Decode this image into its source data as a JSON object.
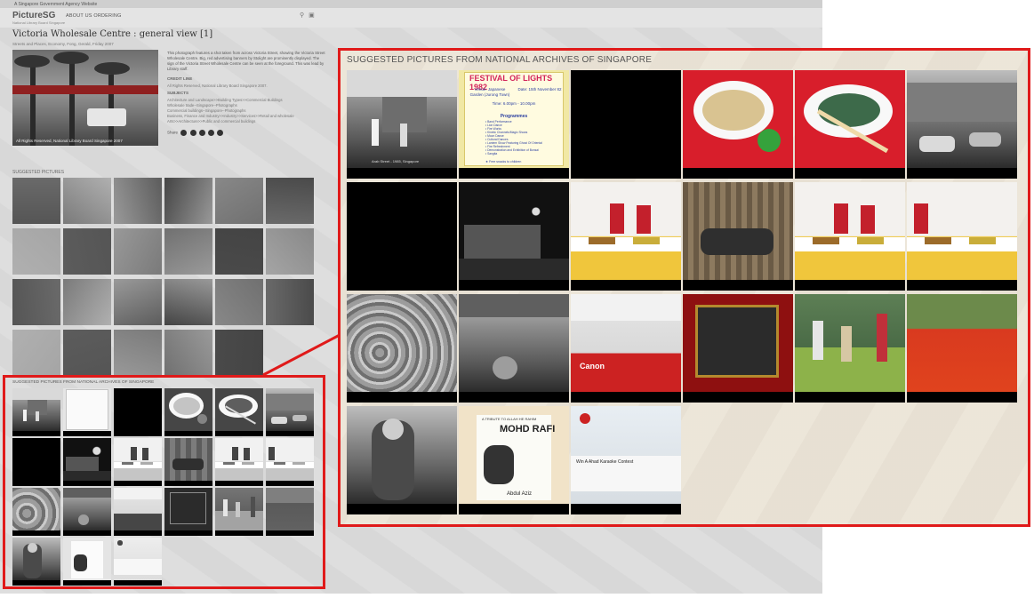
{
  "site": {
    "gov_banner": "A Singapore Government Agency Website",
    "logo": "PictureSG",
    "logo_sub": "National Library Board Singapore",
    "nav_links": "ABOUT US   ORDERING"
  },
  "record": {
    "title": "Victoria Wholesale Centre : general view [1]",
    "meta": "Streets and Places,  Economy,  Fong, Gerald,  Friday 2007",
    "hero_caption": "All Rights Reserved, National Library Board Singapore 2007",
    "description": "This photograph features a shot taken from across Victoria Street, showing the Victoria Street Wholesale Centre. Big, red advertising banners by Stolight are prominently displayed. The sign of the Victoria Street Wholesale Centre can be seen at the foreground. This was lead by Library staff.",
    "credit_heading": "CREDIT LINE",
    "credit_text": "All Rights Reserved, National Library Board Singapore 2007.",
    "subjects_heading": "SUBJECTS",
    "subjects_lines": [
      "Architecture and Landscape>>Building Types>>Commercial Buildings",
      "Wholesale trade--Singapore--Photographs",
      "Commercial buildings--Singapore--Photographs",
      "Business, Finance and Industry>>Industry>>Services>>Retail and wholesale",
      "Arts>>Architecture>>Public and commercial buildings"
    ],
    "share_label": "Share"
  },
  "suggested": {
    "heading": "SUGGESTED PICTURES"
  },
  "nas": {
    "heading_small": "SUGGESTED PICTURES FROM NATIONAL ARCHIVES OF SINGAPORE",
    "heading_zoom": "SUGGESTED PICTURES FROM NATIONAL ARCHIVES OF SINGAPORE",
    "tiles": [
      {
        "name": "street-photo-tile",
        "caption": "Arab Street - 1985, Singapore"
      },
      {
        "name": "festival-poster-tile",
        "poster_title": "FESTIVAL OF LIGHTS 1982",
        "venue_label": "Venue:",
        "venue": "Japanese Garden (Jurong Town)",
        "date_label": "Date:",
        "date": "15th November 82",
        "time_label": "Time:",
        "time": "6.00pm - 10.00pm",
        "programmes_label": "Programmes",
        "programmes_items": [
          "Band Performance",
          "Lion Dance",
          "Fire Works",
          "Kinetic Channels/Magic Shows",
          "Moon Dance",
          "Cultural Dances",
          "Lantern Show Featuring Ghost Of Oriental",
          "Fire Refreshment",
          "Demonstration and Exhibition of Bonsai",
          "Sangita"
        ],
        "footer": "★ Free snacks to children"
      },
      {
        "name": "blank-tile-1"
      },
      {
        "name": "soup-dish-tile"
      },
      {
        "name": "salad-dish-tile"
      },
      {
        "name": "shophouse-street-tile"
      },
      {
        "name": "blank-tile-2"
      },
      {
        "name": "night-hut-tile"
      },
      {
        "name": "buffet-staff-tile-1"
      },
      {
        "name": "hanging-vines-tile"
      },
      {
        "name": "buffet-staff-tile-2"
      },
      {
        "name": "buffet-table-tile"
      },
      {
        "name": "produce-market-tile"
      },
      {
        "name": "street-hawkers-tile"
      },
      {
        "name": "chinese-building-canon-tile",
        "sign": "Canon"
      },
      {
        "name": "plaque-tile"
      },
      {
        "name": "fruit-market-tile"
      },
      {
        "name": "chilli-market-tile"
      },
      {
        "name": "elderly-woman-tile"
      },
      {
        "name": "mohd-rafi-poster-tile",
        "line1": "A TRIBUTE TO ALLAH HE RAHIM",
        "line2": "MOHD RAFI",
        "line3": "Abdul Aziz"
      },
      {
        "name": "karaoke-building-tile",
        "line1": "Win A Ahad Karaoke Contest"
      }
    ]
  },
  "colors": {
    "highlight_red": "#e01a1a",
    "panel_bg": "#ebe4d6",
    "page_bg": "#dcdcdc"
  }
}
